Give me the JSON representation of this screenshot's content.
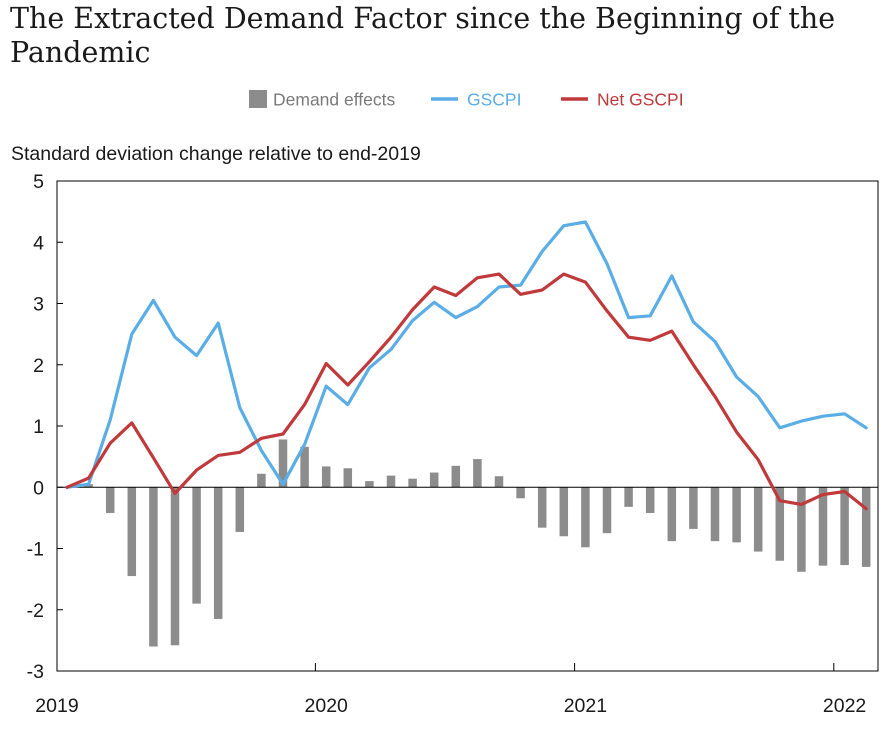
{
  "title": "The Extracted Demand Factor since the Beginning of the Pandemic",
  "chart_data": {
    "type": "bar",
    "ylabel": "Standard deviation change relative to end-2019",
    "ylim": [
      -3,
      5
    ],
    "yticks": [
      5,
      4,
      3,
      2,
      1,
      0,
      -1,
      -2,
      -3
    ],
    "xtick_labels": [
      {
        "label": "2019",
        "index": 0
      },
      {
        "label": "2020",
        "index": 12
      },
      {
        "label": "2021",
        "index": 24
      },
      {
        "label": "2022",
        "index": 36
      }
    ],
    "legend_position": "top",
    "series": [
      {
        "name": "Demand effects",
        "kind": "bar",
        "color": "#8c8c8c",
        "values": [
          0,
          0.05,
          -0.42,
          -1.45,
          -2.6,
          -2.58,
          -1.9,
          -2.15,
          -0.73,
          0.22,
          0.78,
          0.66,
          0.34,
          0.31,
          0.1,
          0.19,
          0.14,
          0.24,
          0.35,
          0.46,
          0.18,
          -0.18,
          -0.66,
          -0.8,
          -0.98,
          -0.75,
          -0.32,
          -0.42,
          -0.88,
          -0.68,
          -0.88,
          -0.9,
          -1.05,
          -1.2,
          -1.38,
          -1.28,
          -1.27,
          -1.3
        ]
      },
      {
        "name": "GSCPI",
        "kind": "line",
        "color": "#5aaee5",
        "values": [
          0,
          0.05,
          1.1,
          2.5,
          3.05,
          2.45,
          2.15,
          2.68,
          1.3,
          0.6,
          0.05,
          0.7,
          1.65,
          1.35,
          1.95,
          2.25,
          2.72,
          3.02,
          2.77,
          2.95,
          3.27,
          3.3,
          3.85,
          4.27,
          4.33,
          3.65,
          2.77,
          2.8,
          3.45,
          2.7,
          2.38,
          1.8,
          1.48,
          0.97,
          1.08,
          1.16,
          1.2,
          0.97
        ]
      },
      {
        "name": "Net GSCPI",
        "kind": "line",
        "color": "#c0393b",
        "values": [
          0,
          0.15,
          0.72,
          1.05,
          0.48,
          -0.1,
          0.28,
          0.52,
          0.57,
          0.8,
          0.87,
          1.35,
          2.02,
          1.67,
          2.05,
          2.45,
          2.9,
          3.27,
          3.13,
          3.42,
          3.48,
          3.15,
          3.22,
          3.48,
          3.35,
          2.88,
          2.45,
          2.4,
          2.55,
          2.0,
          1.48,
          0.9,
          0.45,
          -0.22,
          -0.28,
          -0.12,
          -0.07,
          -0.35
        ]
      }
    ]
  }
}
